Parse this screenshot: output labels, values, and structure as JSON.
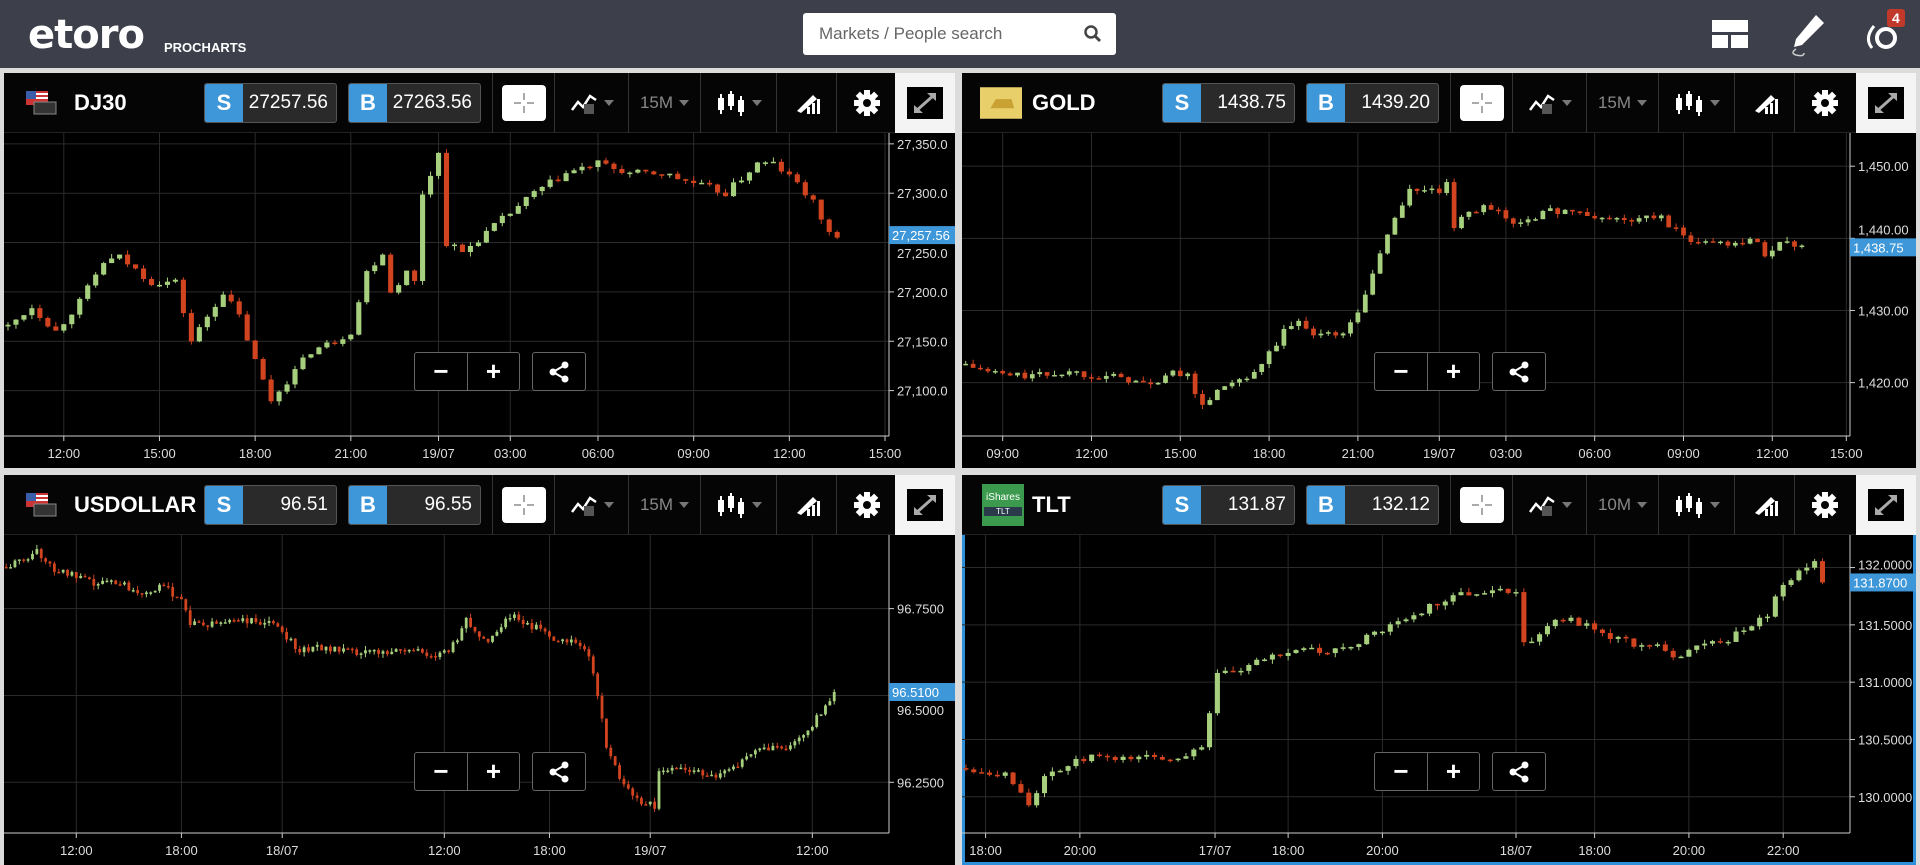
{
  "header": {
    "logo": "etoro",
    "logo_sub": "PROCHARTS",
    "search_placeholder": "Markets / People search",
    "notifications": "4",
    "icons": [
      "layout-icon",
      "pencil-icon",
      "etoro-user-icon"
    ]
  },
  "colors": {
    "up": "#a7d07e",
    "down": "#d2441f",
    "accent": "#3d97d8",
    "grid": "#2b2b2b"
  },
  "panels": [
    {
      "name": "DJ30",
      "sell": "27257.56",
      "buy": "27263.56",
      "period": "15M",
      "flag": "usa",
      "selected": false,
      "price_label": "27,257.56",
      "last": 27257.56,
      "y": {
        "min": 27054,
        "max": 27361,
        "ticks": [
          {
            "v": 27350,
            "l": "27,350.0"
          },
          {
            "v": 27300,
            "l": "27,300.0"
          },
          {
            "v": 27250,
            "l": "27,250.0"
          },
          {
            "v": 27200,
            "l": "27,200.0"
          },
          {
            "v": 27150,
            "l": "27,150.0"
          },
          {
            "v": 27100,
            "l": "27,100.0"
          }
        ]
      },
      "slots": 111,
      "x_labels": [
        {
          "i": 7,
          "l": "12:00"
        },
        {
          "i": 19,
          "l": "15:00"
        },
        {
          "i": 31,
          "l": "18:00"
        },
        {
          "i": 43,
          "l": "21:00"
        },
        {
          "i": 54,
          "l": "19/07"
        },
        {
          "i": 63,
          "l": "03:00"
        },
        {
          "i": 74,
          "l": "06:00"
        },
        {
          "i": 86,
          "l": "09:00"
        },
        {
          "i": 98,
          "l": "12:00"
        },
        {
          "i": 110,
          "l": "15:00"
        }
      ],
      "closes": [
        [
          0,
          27165
        ],
        [
          3,
          27185
        ],
        [
          6,
          27160
        ],
        [
          9,
          27190
        ],
        [
          12,
          27230
        ],
        [
          14,
          27235
        ],
        [
          18,
          27210
        ],
        [
          21,
          27210
        ],
        [
          23,
          27150
        ],
        [
          27,
          27200
        ],
        [
          29,
          27175
        ],
        [
          31,
          27130
        ],
        [
          33,
          27090
        ],
        [
          35,
          27110
        ],
        [
          38,
          27140
        ],
        [
          41,
          27150
        ],
        [
          43,
          27160
        ],
        [
          45,
          27220
        ],
        [
          47,
          27240
        ],
        [
          48,
          27200
        ],
        [
          50,
          27220
        ],
        [
          51,
          27210
        ],
        [
          52,
          27300
        ],
        [
          54,
          27340
        ],
        [
          55,
          27250
        ],
        [
          57,
          27240
        ],
        [
          60,
          27260
        ],
        [
          63,
          27280
        ],
        [
          66,
          27300
        ],
        [
          70,
          27320
        ],
        [
          74,
          27330
        ],
        [
          78,
          27320
        ],
        [
          82,
          27320
        ],
        [
          86,
          27310
        ],
        [
          90,
          27300
        ],
        [
          94,
          27330
        ],
        [
          96,
          27330
        ],
        [
          99,
          27310
        ],
        [
          101,
          27290
        ],
        [
          103,
          27260
        ],
        [
          104,
          27255
        ]
      ]
    },
    {
      "name": "GOLD",
      "sell": "1438.75",
      "buy": "1439.20",
      "period": "15M",
      "flag": "gold",
      "selected": false,
      "price_label": "1,438.75",
      "last": 1438.75,
      "y": {
        "min": 1412.6,
        "max": 1454.6,
        "ticks": [
          {
            "v": 1450,
            "l": "1,450.00"
          },
          {
            "v": 1440,
            "l": "1,440.00"
          },
          {
            "v": 1430,
            "l": "1,430.00"
          },
          {
            "v": 1420,
            "l": "1,420.00"
          }
        ]
      },
      "slots": 120,
      "x_labels": [
        {
          "i": 5,
          "l": "09:00"
        },
        {
          "i": 17,
          "l": "12:00"
        },
        {
          "i": 29,
          "l": "15:00"
        },
        {
          "i": 41,
          "l": "18:00"
        },
        {
          "i": 53,
          "l": "21:00"
        },
        {
          "i": 64,
          "l": "19/07"
        },
        {
          "i": 73,
          "l": "03:00"
        },
        {
          "i": 85,
          "l": "06:00"
        },
        {
          "i": 97,
          "l": "09:00"
        },
        {
          "i": 109,
          "l": "12:00"
        },
        {
          "i": 119,
          "l": "15:00"
        }
      ],
      "closes": [
        [
          0,
          1422.5
        ],
        [
          3,
          1421.5
        ],
        [
          6,
          1421
        ],
        [
          10,
          1421
        ],
        [
          14,
          1421.5
        ],
        [
          18,
          1421
        ],
        [
          22,
          1420.5
        ],
        [
          25,
          1419.5
        ],
        [
          27,
          1421
        ],
        [
          30,
          1421.5
        ],
        [
          31,
          1418
        ],
        [
          32,
          1417
        ],
        [
          35,
          1419.5
        ],
        [
          37,
          1420
        ],
        [
          39,
          1421
        ],
        [
          41,
          1424
        ],
        [
          43,
          1427
        ],
        [
          45,
          1428.5
        ],
        [
          47,
          1427
        ],
        [
          50,
          1426.5
        ],
        [
          52,
          1428
        ],
        [
          54,
          1432
        ],
        [
          56,
          1438
        ],
        [
          58,
          1443
        ],
        [
          60,
          1446.5
        ],
        [
          62,
          1447
        ],
        [
          64,
          1446
        ],
        [
          65,
          1448
        ],
        [
          66,
          1441
        ],
        [
          67,
          1442.5
        ],
        [
          69,
          1444
        ],
        [
          70,
          1445
        ],
        [
          72,
          1443.5
        ],
        [
          74,
          1442
        ],
        [
          78,
          1443.5
        ],
        [
          81,
          1444
        ],
        [
          84,
          1443
        ],
        [
          90,
          1442.5
        ],
        [
          94,
          1443
        ],
        [
          97,
          1440
        ],
        [
          100,
          1439.5
        ],
        [
          104,
          1439.5
        ],
        [
          106,
          1440
        ],
        [
          108,
          1438
        ],
        [
          110,
          1439.5
        ],
        [
          113,
          1439
        ]
      ]
    },
    {
      "name": "USDOLLAR",
      "sell": "96.51",
      "buy": "96.55",
      "period": "15M",
      "flag": "usa",
      "selected": false,
      "price_label": "96.5100",
      "last": 96.51,
      "y": {
        "min": 96.104,
        "max": 96.962,
        "ticks": [
          {
            "v": 96.75,
            "l": "96.7500"
          },
          {
            "v": 96.5,
            "l": "96.5000"
          },
          {
            "v": 96.25,
            "l": "96.2500"
          }
        ]
      },
      "slots": 202,
      "x_labels": [
        {
          "i": 16,
          "l": "12:00"
        },
        {
          "i": 40,
          "l": "18:00"
        },
        {
          "i": 63,
          "l": "18/07"
        },
        {
          "i": 100,
          "l": "12:00"
        },
        {
          "i": 124,
          "l": "18:00"
        },
        {
          "i": 147,
          "l": "19/07"
        },
        {
          "i": 184,
          "l": "12:00"
        }
      ],
      "closes": [
        [
          0,
          96.87
        ],
        [
          4,
          96.89
        ],
        [
          7,
          96.92
        ],
        [
          10,
          96.87
        ],
        [
          14,
          96.85
        ],
        [
          20,
          96.82
        ],
        [
          25,
          96.83
        ],
        [
          30,
          96.8
        ],
        [
          36,
          96.81
        ],
        [
          40,
          96.78
        ],
        [
          42,
          96.71
        ],
        [
          46,
          96.7
        ],
        [
          52,
          96.72
        ],
        [
          58,
          96.71
        ],
        [
          62,
          96.7
        ],
        [
          67,
          96.63
        ],
        [
          72,
          96.64
        ],
        [
          80,
          96.62
        ],
        [
          88,
          96.63
        ],
        [
          94,
          96.63
        ],
        [
          98,
          96.61
        ],
        [
          100,
          96.62
        ],
        [
          103,
          96.66
        ],
        [
          105,
          96.73
        ],
        [
          107,
          96.68
        ],
        [
          110,
          96.66
        ],
        [
          115,
          96.73
        ],
        [
          118,
          96.71
        ],
        [
          122,
          96.69
        ],
        [
          126,
          96.66
        ],
        [
          130,
          96.66
        ],
        [
          133,
          96.62
        ],
        [
          135,
          96.5
        ],
        [
          137,
          96.35
        ],
        [
          140,
          96.27
        ],
        [
          143,
          96.21
        ],
        [
          146,
          96.19
        ],
        [
          148,
          96.18
        ],
        [
          149,
          96.28
        ],
        [
          152,
          96.29
        ],
        [
          158,
          96.28
        ],
        [
          163,
          96.27
        ],
        [
          168,
          96.31
        ],
        [
          172,
          96.34
        ],
        [
          176,
          96.35
        ],
        [
          180,
          96.36
        ],
        [
          183,
          96.4
        ],
        [
          186,
          96.45
        ],
        [
          189,
          96.51
        ]
      ]
    },
    {
      "name": "TLT",
      "sell": "131.87",
      "buy": "132.12",
      "period": "10M",
      "flag": "ishares",
      "flag_text": "iShares",
      "flag_sub": "TLT",
      "selected": true,
      "price_label": "131.8700",
      "last": 131.87,
      "y": {
        "min": 129.684,
        "max": 132.284,
        "ticks": [
          {
            "v": 132,
            "l": "132.0000"
          },
          {
            "v": 131.5,
            "l": "131.5000"
          },
          {
            "v": 131,
            "l": "131.0000"
          },
          {
            "v": 130.5,
            "l": "130.5000"
          },
          {
            "v": 130,
            "l": "130.0000"
          }
        ]
      },
      "slots": 113,
      "x_labels": [
        {
          "i": 2.5,
          "l": "18:00"
        },
        {
          "i": 14.5,
          "l": "20:00"
        },
        {
          "i": 31.7,
          "l": "17/07"
        },
        {
          "i": 41,
          "l": "18:00"
        },
        {
          "i": 53,
          "l": "20:00"
        },
        {
          "i": 70,
          "l": "18/07"
        },
        {
          "i": 80,
          "l": "18:00"
        },
        {
          "i": 92,
          "l": "20:00"
        },
        {
          "i": 104,
          "l": "22:00"
        }
      ],
      "closes": [
        [
          0,
          130.25
        ],
        [
          3,
          130.22
        ],
        [
          5,
          130.2
        ],
        [
          7,
          130.05
        ],
        [
          8,
          129.95
        ],
        [
          10,
          130.15
        ],
        [
          12,
          130.25
        ],
        [
          14,
          130.3
        ],
        [
          16,
          130.35
        ],
        [
          18,
          130.32
        ],
        [
          22,
          130.35
        ],
        [
          26,
          130.33
        ],
        [
          29,
          130.4
        ],
        [
          30,
          130.45
        ],
        [
          32,
          131.05
        ],
        [
          35,
          131.1
        ],
        [
          38,
          131.2
        ],
        [
          42,
          131.3
        ],
        [
          46,
          131.25
        ],
        [
          50,
          131.35
        ],
        [
          53,
          131.45
        ],
        [
          56,
          131.55
        ],
        [
          60,
          131.7
        ],
        [
          62,
          131.75
        ],
        [
          66,
          131.8
        ],
        [
          70,
          131.8
        ],
        [
          71,
          131.35
        ],
        [
          73,
          131.4
        ],
        [
          75,
          131.55
        ],
        [
          77,
          131.55
        ],
        [
          80,
          131.45
        ],
        [
          84,
          131.35
        ],
        [
          88,
          131.3
        ],
        [
          90,
          131.2
        ],
        [
          92,
          131.3
        ],
        [
          96,
          131.35
        ],
        [
          99,
          131.45
        ],
        [
          102,
          131.6
        ],
        [
          104,
          131.85
        ],
        [
          106,
          131.95
        ],
        [
          108,
          132.05
        ],
        [
          109,
          131.87
        ]
      ]
    }
  ]
}
